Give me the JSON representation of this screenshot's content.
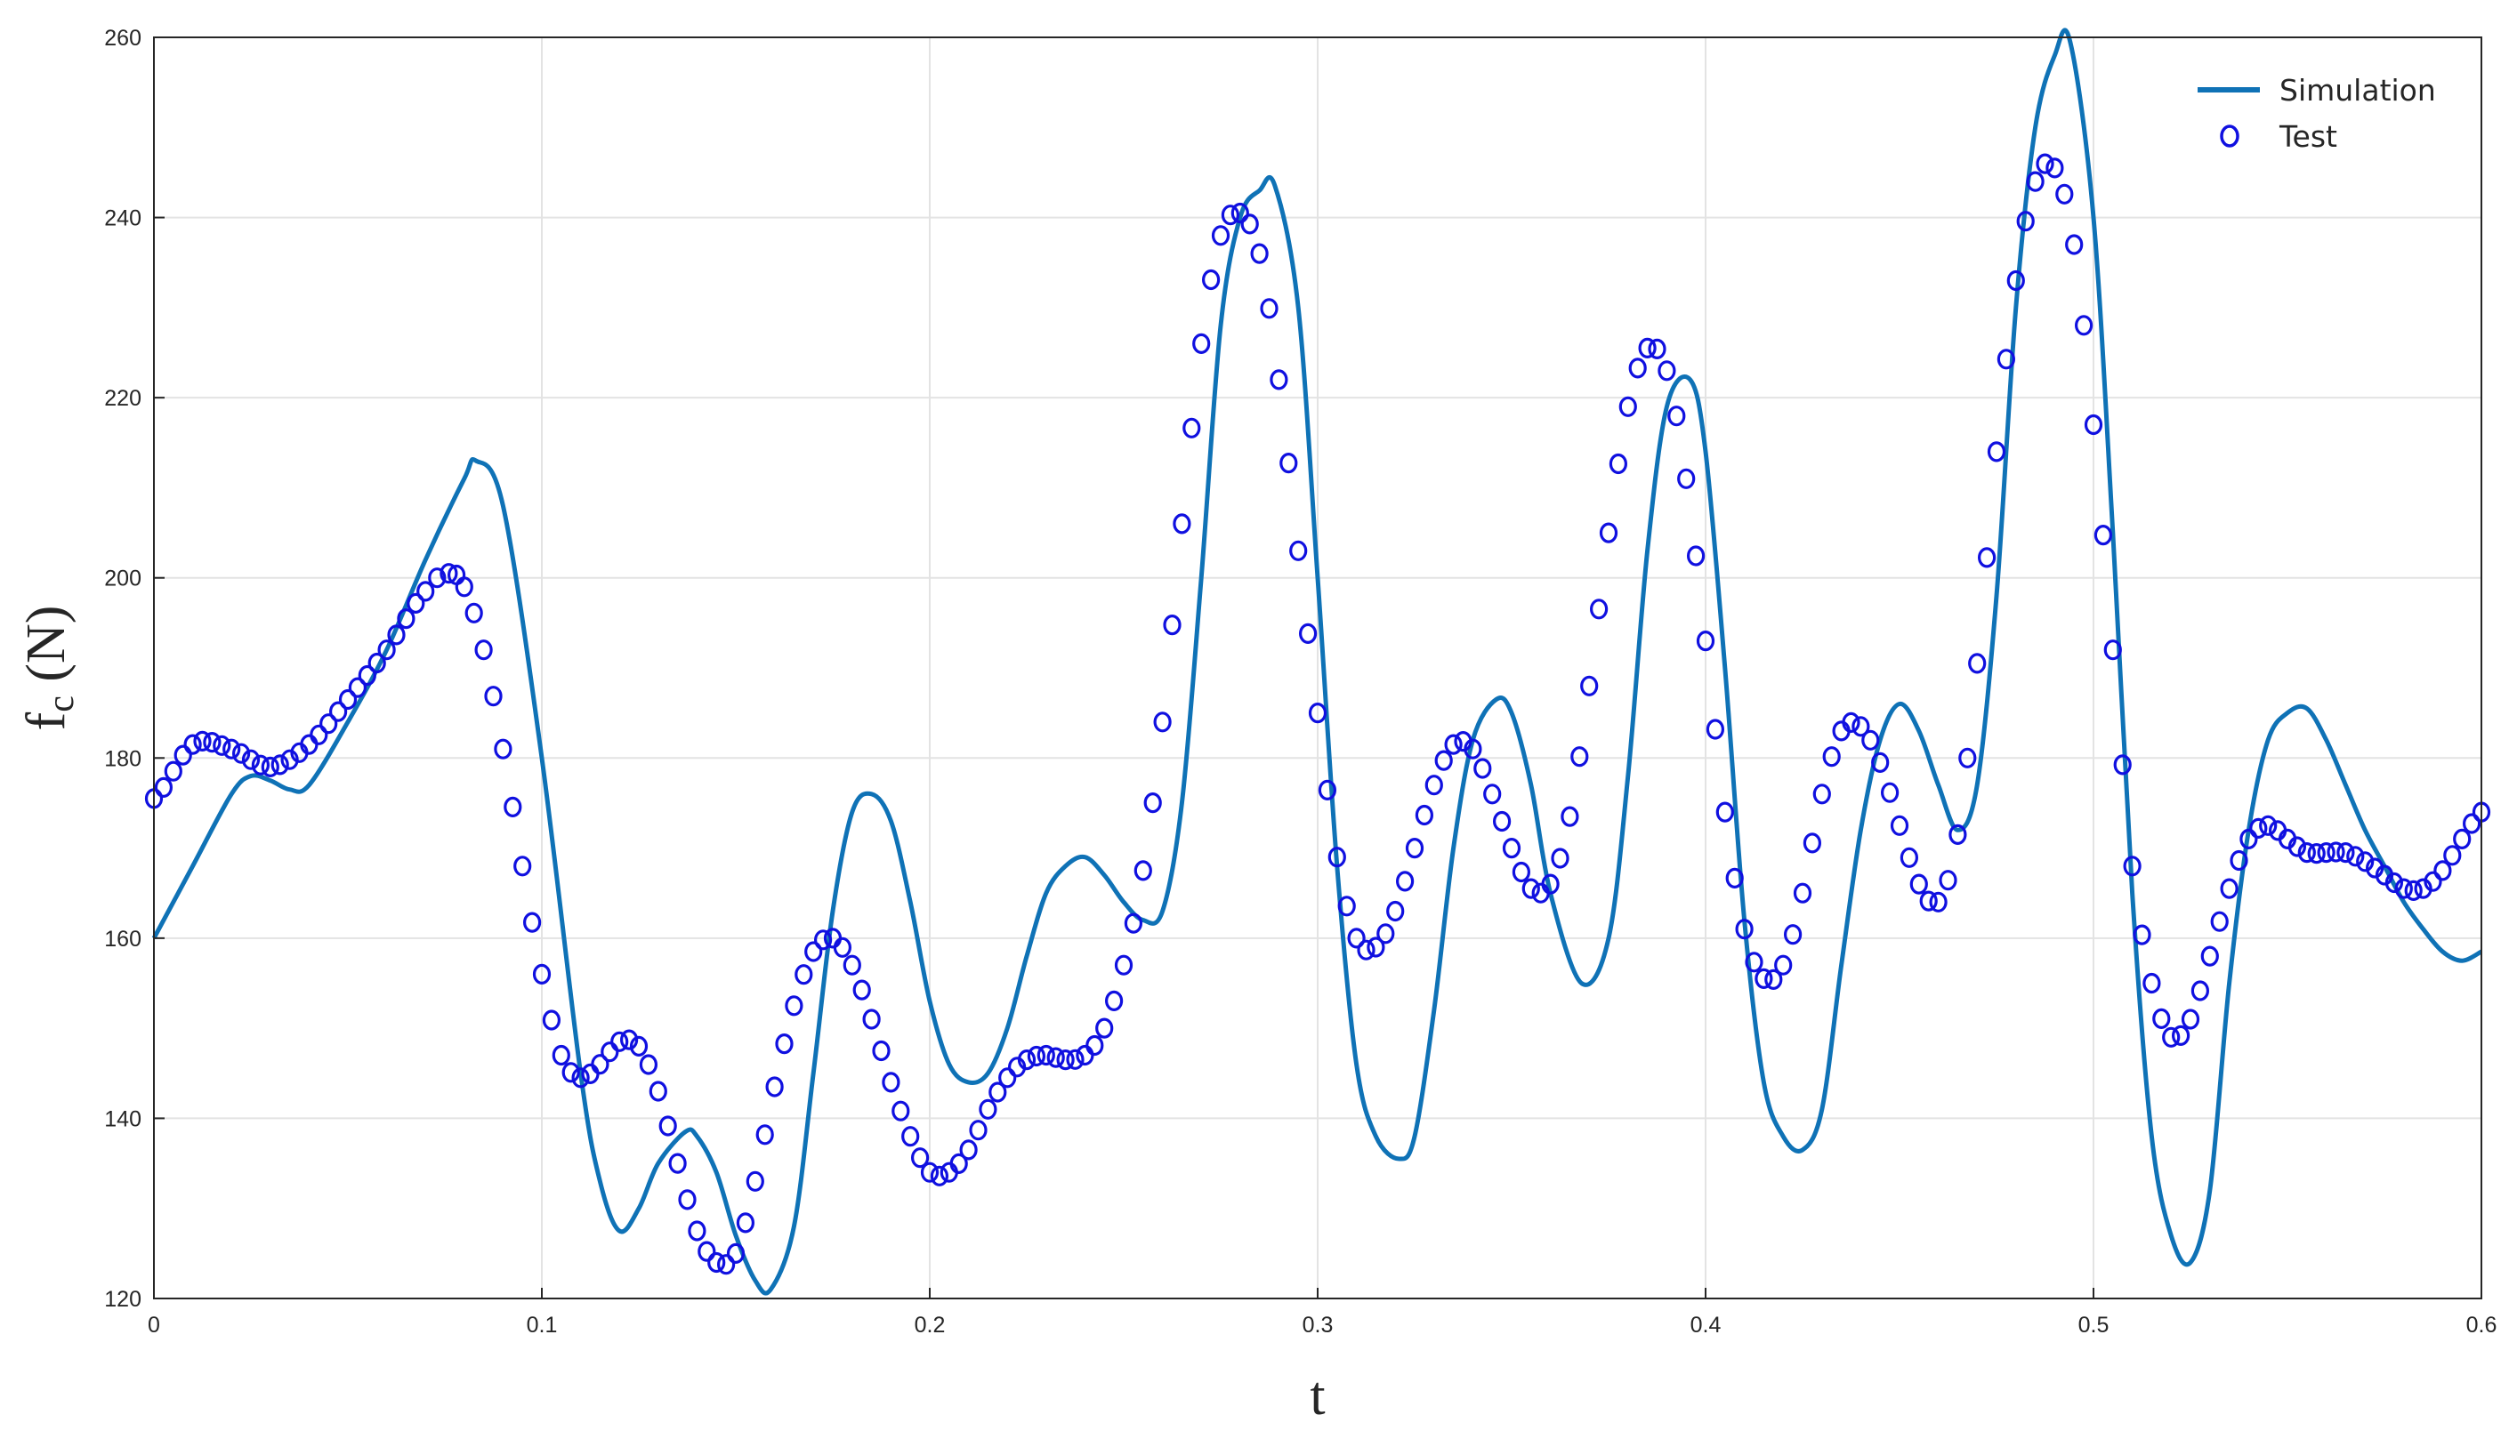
{
  "chart_data": {
    "type": "line",
    "xlabel": "t",
    "ylabel": "f",
    "ylabel_sub": "c",
    "ylabel_unit": " (N)",
    "xlim": [
      0,
      0.6
    ],
    "ylim": [
      120,
      260
    ],
    "xticks": [
      0,
      0.1,
      0.2,
      0.3,
      0.4,
      0.5,
      0.6
    ],
    "xtick_labels": [
      "0",
      "0.1",
      "0.2",
      "0.3",
      "0.4",
      "0.5",
      "0.6"
    ],
    "yticks": [
      120,
      140,
      160,
      180,
      200,
      220,
      240,
      260
    ],
    "ytick_labels": [
      "120",
      "140",
      "160",
      "180",
      "200",
      "220",
      "240",
      "260"
    ],
    "grid": true,
    "legend_position": "top-right",
    "series": [
      {
        "name": "Simulation",
        "style": "line",
        "color": "#0f72b6",
        "x": [
          0,
          0.01,
          0.02,
          0.025,
          0.03,
          0.035,
          0.04,
          0.05,
          0.06,
          0.07,
          0.08,
          0.083,
          0.09,
          0.1,
          0.11,
          0.115,
          0.12,
          0.125,
          0.13,
          0.137,
          0.14,
          0.145,
          0.15,
          0.155,
          0.159,
          0.165,
          0.17,
          0.175,
          0.18,
          0.185,
          0.19,
          0.195,
          0.2,
          0.205,
          0.21,
          0.215,
          0.22,
          0.225,
          0.23,
          0.235,
          0.24,
          0.245,
          0.25,
          0.255,
          0.26,
          0.265,
          0.27,
          0.275,
          0.28,
          0.285,
          0.289,
          0.295,
          0.3,
          0.305,
          0.31,
          0.315,
          0.321,
          0.325,
          0.33,
          0.335,
          0.34,
          0.346,
          0.35,
          0.355,
          0.36,
          0.368,
          0.375,
          0.38,
          0.385,
          0.39,
          0.396,
          0.4,
          0.405,
          0.41,
          0.415,
          0.42,
          0.425,
          0.43,
          0.435,
          0.44,
          0.445,
          0.45,
          0.455,
          0.46,
          0.465,
          0.47,
          0.475,
          0.48,
          0.485,
          0.49,
          0.494,
          0.5,
          0.505,
          0.51,
          0.515,
          0.52,
          0.525,
          0.53,
          0.535,
          0.54,
          0.545,
          0.55,
          0.555,
          0.56,
          0.565,
          0.57,
          0.575,
          0.58,
          0.585,
          0.59,
          0.595,
          0.6
        ],
        "y": [
          160,
          168,
          176,
          178,
          177.5,
          176.5,
          177,
          184,
          192,
          202,
          211,
          213,
          208,
          180,
          145,
          133,
          127.5,
          130,
          135,
          138.5,
          138,
          134,
          127,
          122,
          121,
          128,
          145,
          163,
          174,
          176,
          173,
          164,
          153,
          146,
          144,
          145,
          150,
          158,
          165,
          168,
          169,
          167,
          164,
          162,
          163,
          175,
          200,
          228,
          240,
          243,
          243.5,
          230,
          200,
          168,
          146,
          138,
          135.5,
          138,
          152,
          170,
          182,
          186.5,
          185,
          177,
          165,
          155,
          160,
          178,
          203,
          219,
          222,
          214,
          190,
          162,
          144,
          138,
          136.5,
          141,
          157,
          172,
          182,
          186,
          183,
          177,
          172,
          177,
          198,
          230,
          250,
          258,
          259.5,
          240,
          205,
          165,
          138,
          127,
          124,
          132,
          155,
          172,
          182,
          185,
          185.5,
          182,
          177,
          172,
          168,
          164,
          161,
          158.5,
          157.5,
          158.5
        ]
      },
      {
        "name": "Test",
        "style": "marker",
        "color": "#1010e0",
        "x": [
          0,
          0.01,
          0.02,
          0.03,
          0.04,
          0.05,
          0.06,
          0.07,
          0.076,
          0.08,
          0.085,
          0.09,
          0.095,
          0.1,
          0.105,
          0.11,
          0.115,
          0.12,
          0.125,
          0.13,
          0.135,
          0.14,
          0.145,
          0.15,
          0.155,
          0.16,
          0.165,
          0.17,
          0.175,
          0.18,
          0.185,
          0.19,
          0.195,
          0.2,
          0.205,
          0.21,
          0.215,
          0.22,
          0.225,
          0.23,
          0.235,
          0.24,
          0.245,
          0.25,
          0.255,
          0.26,
          0.265,
          0.27,
          0.275,
          0.28,
          0.285,
          0.29,
          0.295,
          0.3,
          0.305,
          0.31,
          0.315,
          0.32,
          0.325,
          0.33,
          0.335,
          0.34,
          0.345,
          0.35,
          0.355,
          0.36,
          0.365,
          0.37,
          0.375,
          0.38,
          0.385,
          0.39,
          0.395,
          0.4,
          0.405,
          0.41,
          0.415,
          0.42,
          0.425,
          0.43,
          0.435,
          0.44,
          0.445,
          0.45,
          0.455,
          0.46,
          0.465,
          0.47,
          0.475,
          0.48,
          0.485,
          0.49,
          0.495,
          0.5,
          0.505,
          0.51,
          0.515,
          0.52,
          0.525,
          0.53,
          0.535,
          0.54,
          0.545,
          0.55,
          0.555,
          0.56,
          0.565,
          0.57,
          0.575,
          0.58,
          0.585,
          0.59,
          0.595,
          0.6
        ],
        "y": [
          175.5,
          181.5,
          181,
          179,
          181.5,
          186.5,
          192,
          198.5,
          200.5,
          199,
          192,
          181,
          168,
          156,
          147,
          144.5,
          146,
          148.5,
          148,
          143,
          135,
          127.5,
          124,
          125,
          133,
          143.5,
          152.5,
          158.5,
          160,
          157,
          151,
          144,
          138,
          134,
          134,
          136.5,
          141,
          144.5,
          146.5,
          147,
          146.5,
          147,
          150,
          157,
          167.5,
          184,
          206,
          226,
          238,
          240.5,
          236,
          222,
          203,
          185,
          169,
          160,
          159,
          163,
          170,
          177,
          181.5,
          181,
          176,
          170,
          165.5,
          166,
          173.5,
          188,
          205,
          219,
          225.5,
          223,
          211,
          193,
          174,
          161,
          155.5,
          157,
          165,
          176,
          183,
          183.5,
          179.5,
          172.5,
          166,
          164,
          171.5,
          190.5,
          214,
          233,
          244,
          245.5,
          237,
          217,
          192,
          168,
          155,
          149,
          151,
          158,
          165.5,
          171,
          172.5,
          171,
          169.5,
          169.5,
          169.5,
          168.5,
          167,
          165.5,
          165.5,
          167.5,
          171,
          174
        ]
      }
    ]
  }
}
